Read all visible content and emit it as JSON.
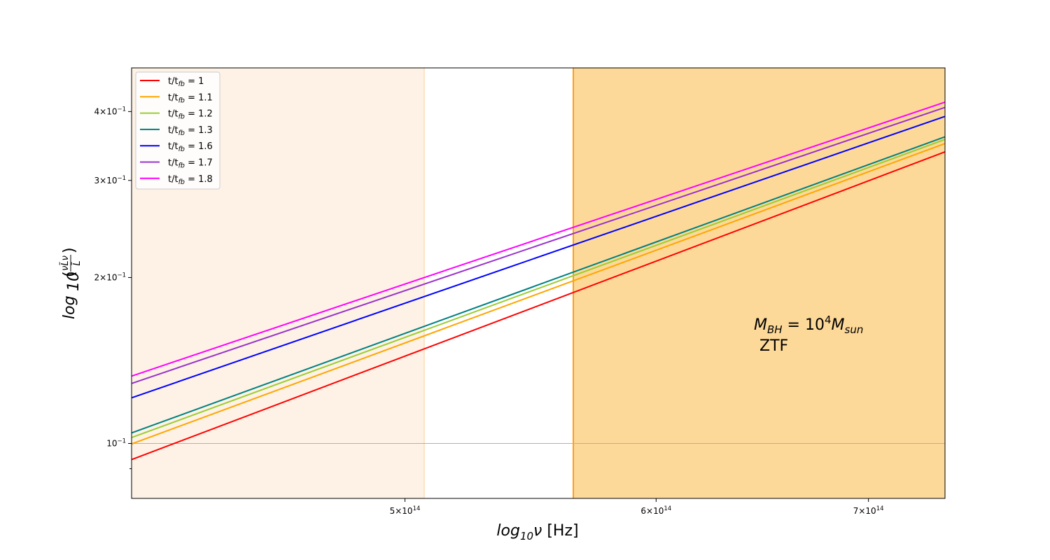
{
  "chart_data": {
    "type": "line",
    "xlabel": {
      "prefix": "log",
      "sub": "10",
      "var": "ν",
      "unit": " [Hz]"
    },
    "ylabel": {
      "prefix": "log",
      "sub": "10",
      "frac_num": "νL̃ν",
      "frac_den": "L̃"
    },
    "x_scale": "log",
    "y_scale": "log",
    "xlim": [
      410000000000000.0,
      740000000000000.0
    ],
    "ylim": [
      0.0795,
      0.48
    ],
    "x_ticks": [
      {
        "value": 500000000000000.0,
        "mant": "5",
        "base": "10",
        "exp": "14"
      },
      {
        "value": 600000000000000.0,
        "mant": "6",
        "base": "10",
        "exp": "14"
      },
      {
        "value": 700000000000000.0,
        "mant": "7",
        "base": "10",
        "exp": "14"
      }
    ],
    "y_ticks": [
      {
        "value": 0.1,
        "mant": "",
        "base": "10",
        "exp": "−1"
      },
      {
        "value": 0.2,
        "mant": "2",
        "base": "10",
        "exp": "−1"
      },
      {
        "value": 0.3,
        "mant": "3",
        "base": "10",
        "exp": "−1"
      },
      {
        "value": 0.4,
        "mant": "4",
        "base": "10",
        "exp": "−1"
      }
    ],
    "y_minor_ticks": [
      0.09,
      0.5
    ],
    "grid": "horizontal line at 10^-1",
    "shaded_bands": [
      {
        "x0": 410000000000000.0,
        "x1": 507000000000000.0,
        "color": "#fdf2e5",
        "edge": "#fde3c4"
      },
      {
        "x0": 565000000000000.0,
        "x1": 740000000000000.0,
        "color": "#fdd999",
        "edge": "#ff9f10"
      }
    ],
    "series": [
      {
        "name_base": "t/t",
        "name_sub": "fb",
        "name_value": " = 1",
        "color": "#ff0000",
        "x": [
          410000000000000.0,
          740000000000000.0
        ],
        "y": [
          0.0935,
          0.338
        ]
      },
      {
        "name_base": "t/t",
        "name_sub": "fb",
        "name_value": " = 1.1",
        "color": "#ffa500",
        "x": [
          410000000000000.0,
          740000000000000.0
        ],
        "y": [
          0.0998,
          0.35
        ]
      },
      {
        "name_base": "t/t",
        "name_sub": "fb",
        "name_value": " = 1.2",
        "color": "#9acd32",
        "x": [
          410000000000000.0,
          740000000000000.0
        ],
        "y": [
          0.1025,
          0.356
        ]
      },
      {
        "name_base": "t/t",
        "name_sub": "fb",
        "name_value": " = 1.3",
        "color": "#008080",
        "x": [
          410000000000000.0,
          740000000000000.0
        ],
        "y": [
          0.1045,
          0.36
        ]
      },
      {
        "name_base": "t/t",
        "name_sub": "fb",
        "name_value": " = 1.6",
        "color": "#0000ff",
        "x": [
          410000000000000.0,
          740000000000000.0
        ],
        "y": [
          0.121,
          0.392
        ]
      },
      {
        "name_base": "t/t",
        "name_sub": "fb",
        "name_value": " = 1.7",
        "color": "#9932cc",
        "x": [
          410000000000000.0,
          740000000000000.0
        ],
        "y": [
          0.1285,
          0.407
        ]
      },
      {
        "name_base": "t/t",
        "name_sub": "fb",
        "name_value": " = 1.8",
        "color": "#ff00ff",
        "x": [
          410000000000000.0,
          740000000000000.0
        ],
        "y": [
          0.1325,
          0.416
        ]
      }
    ],
    "legend_position": "upper-left",
    "annotation": {
      "line1_M": "M",
      "line1_sub": "BH",
      "line1_eq": " = 10",
      "line1_exp": "4",
      "line1_M2": "M",
      "line1_sub2": "sun",
      "line2": "ZTF"
    }
  }
}
